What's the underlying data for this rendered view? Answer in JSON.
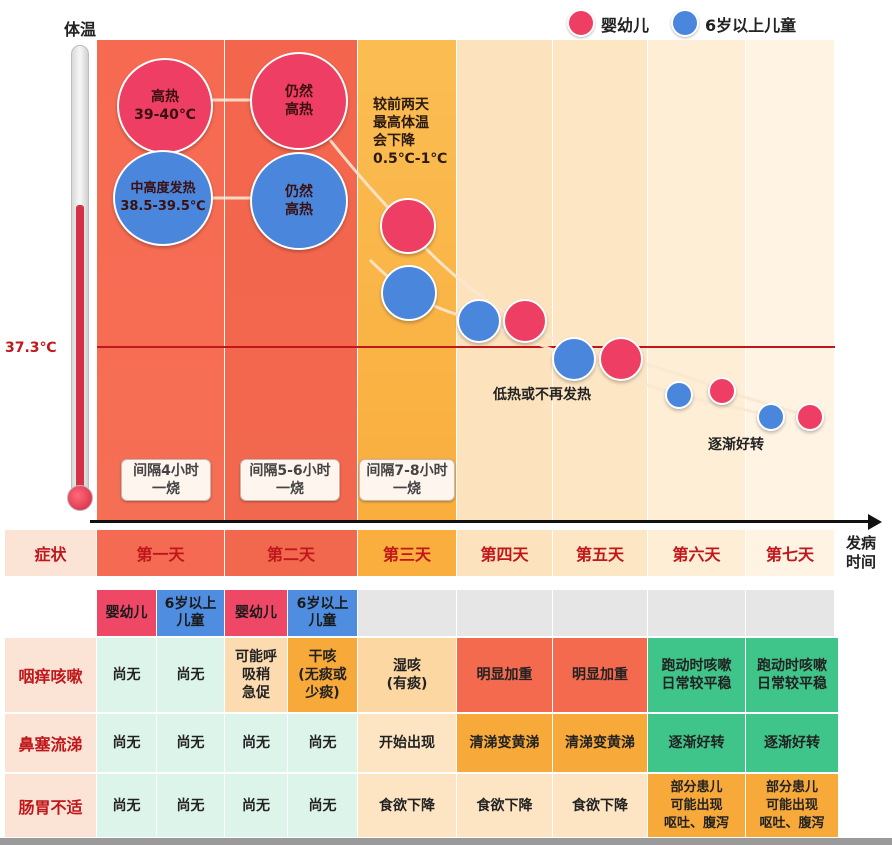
{
  "legend": {
    "infant": {
      "label": "婴幼儿",
      "color": "#ef3e63"
    },
    "child": {
      "label": "6岁以上儿童",
      "color": "#4a86dc"
    }
  },
  "axis": {
    "y_label": "体温",
    "x_label": "发病\n时间",
    "threshold": "37.3℃"
  },
  "bubbles": {
    "d1_infant": "高热\n39-40℃",
    "d1_child": "中高度发热\n38.5-39.5℃",
    "d2_infant": "仍然\n高热",
    "d2_child": "仍然\n高热"
  },
  "annotations": {
    "day3_note": "较前两天\n最高体温\n会下降\n0.5℃-1℃",
    "low_fever": "低热或不再发热",
    "improving": "逐渐好转"
  },
  "intervals": [
    "间隔4小时\n一烧",
    "间隔5-6小时\n一烧",
    "间隔7-8小时\n一烧"
  ],
  "days_header": "症状",
  "days": [
    "第一天",
    "第二天",
    "第三天",
    "第四天",
    "第五天",
    "第六天",
    "第七天"
  ],
  "table": {
    "subheaders": [
      "婴幼儿",
      "6岁以上\n儿童",
      "婴幼儿",
      "6岁以上\n儿童"
    ],
    "rows": [
      {
        "label": "咽痒咳嗽",
        "cells": [
          "尚无",
          "尚无",
          "可能呼\n吸稍\n急促",
          "干咳\n(无痰或\n少痰)",
          "湿咳\n(有痰)",
          "明显加重",
          "明显加重",
          "跑动时咳嗽\n日常较平稳",
          "跑动时咳嗽\n日常较平稳"
        ]
      },
      {
        "label": "鼻塞流涕",
        "cells": [
          "尚无",
          "尚无",
          "尚无",
          "尚无",
          "开始出现",
          "清涕变黄涕",
          "清涕变黄涕",
          "逐渐好转",
          "逐渐好转"
        ]
      },
      {
        "label": "肠胃不适",
        "cells": [
          "尚无",
          "尚无",
          "尚无",
          "尚无",
          "食欲下降",
          "食欲下降",
          "食欲下降",
          "部分患儿\n可能出现\n呕吐、腹泻",
          "部分患儿\n可能出现\n呕吐、腹泻"
        ]
      }
    ]
  },
  "colors": {
    "day1_bg": "#f56c52",
    "day2_bg": "#f46a50",
    "day3_bg": "#fbb646",
    "threshold_line": "#c0171b",
    "green_cell": "#3fc489",
    "orange_cell": "#f7a93a",
    "red_cell": "#f36a4e"
  }
}
